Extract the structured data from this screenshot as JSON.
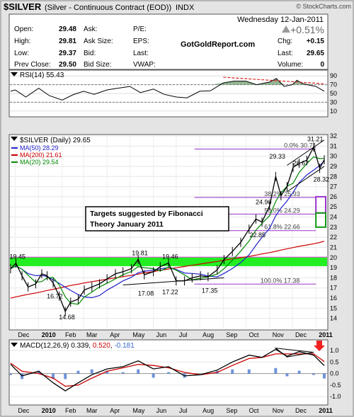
{
  "header": {
    "symbol_title": "$SILVER",
    "symbol_desc": "(Silver - Continuous Contract (EOD))",
    "exchange": "INDX",
    "brand": "© StockCharts.com",
    "date": "Wednesday 12-Jan-2011",
    "change_pct": "+0.51%",
    "watermark": "GotGoldReport.com",
    "quote": [
      {
        "label": "Open:",
        "value": "29.48"
      },
      {
        "label": "High:",
        "value": "29.81"
      },
      {
        "label": "Low:",
        "value": "29.37"
      },
      {
        "label": "Prev Close:",
        "value": "29.50"
      }
    ],
    "quote2": [
      {
        "label": "Ask:",
        "value": ""
      },
      {
        "label": "Ask Size:",
        "value": ""
      },
      {
        "label": "Bid:",
        "value": ""
      },
      {
        "label": "Bid Size:",
        "value": ""
      }
    ],
    "quote3": [
      {
        "label": "P/E:",
        "value": ""
      },
      {
        "label": "EPS:",
        "value": ""
      },
      {
        "label": "Last:",
        "value": ""
      },
      {
        "label": "VWAP:",
        "value": ""
      }
    ],
    "quote4": [
      {
        "label": "Chg:",
        "value": "+0.15"
      },
      {
        "label": "Last:",
        "value": "29.65"
      },
      {
        "label": "Volume:",
        "value": "0"
      }
    ]
  },
  "colors": {
    "background": "#e4e4e4",
    "panel": "#ffffff",
    "price": "#000000",
    "ma50": "#2222cc",
    "ma200": "#cc0000",
    "ma20": "#008800",
    "green_band": "#22ee22",
    "fib": "#9933cc",
    "rsi_fill": "#669966",
    "macd": "#000000",
    "signal": "#cc0000",
    "hist": "#3366cc",
    "trend_red": "#dd2222"
  },
  "chart_data": [
    {
      "type": "line",
      "name": "RSI",
      "label": "RSI(14)",
      "last_value": "55.43",
      "ylim": [
        0,
        100
      ],
      "y_ticks": [
        10,
        30,
        50,
        70,
        90
      ],
      "reference_lines": [
        30,
        70
      ],
      "dates": [
        "2009-11-25",
        "2009-12-01",
        "2009-12-15",
        "2010-01-01",
        "2010-01-15",
        "2010-02-01",
        "2010-02-15",
        "2010-03-01",
        "2010-03-15",
        "2010-04-01",
        "2010-04-15",
        "2010-05-01",
        "2010-05-15",
        "2010-06-01",
        "2010-06-15",
        "2010-07-01",
        "2010-07-15",
        "2010-08-01",
        "2010-08-15",
        "2010-09-01",
        "2010-09-15",
        "2010-10-01",
        "2010-10-15",
        "2010-11-01",
        "2010-11-10",
        "2010-11-20",
        "2010-12-01",
        "2010-12-07",
        "2010-12-15",
        "2011-01-01",
        "2011-01-12"
      ],
      "values": [
        55,
        58,
        42,
        62,
        45,
        35,
        47,
        55,
        48,
        58,
        62,
        66,
        52,
        60,
        48,
        42,
        40,
        55,
        56,
        74,
        78,
        78,
        70,
        76,
        84,
        66,
        70,
        80,
        72,
        66,
        55
      ]
    },
    {
      "type": "line",
      "name": "Price",
      "label": "$SILVER (Daily)",
      "last_value": "29.65",
      "ylim": [
        13,
        32
      ],
      "y_ticks": [
        14,
        15,
        16,
        17,
        18,
        19,
        20,
        21,
        22,
        23,
        24,
        25,
        26,
        27,
        28,
        29,
        30,
        31,
        32
      ],
      "x_ticks": [
        "Dec",
        "2010",
        "Feb",
        "Mar",
        "Apr",
        "May",
        "Jun",
        "Jul",
        "Aug",
        "Sep",
        "Oct",
        "Nov",
        "Dec",
        "2011"
      ],
      "dates": [
        "2009-11-25",
        "2009-12-02",
        "2009-12-10",
        "2009-12-18",
        "2009-12-28",
        "2010-01-05",
        "2010-01-12",
        "2010-01-20",
        "2010-01-28",
        "2010-02-05",
        "2010-02-12",
        "2010-02-22",
        "2010-03-02",
        "2010-03-12",
        "2010-03-22",
        "2010-04-01",
        "2010-04-12",
        "2010-04-22",
        "2010-05-03",
        "2010-05-12",
        "2010-05-20",
        "2010-06-01",
        "2010-06-10",
        "2010-06-21",
        "2010-07-01",
        "2010-07-12",
        "2010-07-22",
        "2010-08-02",
        "2010-08-12",
        "2010-08-24",
        "2010-09-02",
        "2010-09-13",
        "2010-09-24",
        "2010-10-05",
        "2010-10-14",
        "2010-10-22",
        "2010-11-01",
        "2010-11-09",
        "2010-11-16",
        "2010-11-24",
        "2010-12-02",
        "2010-12-10",
        "2010-12-20",
        "2010-12-29",
        "2011-01-06",
        "2011-01-12"
      ],
      "values": [
        18.9,
        19.45,
        18.2,
        17.1,
        17.4,
        18.4,
        18.2,
        17.5,
        16.2,
        14.68,
        15.6,
        15.9,
        16.8,
        17.1,
        17.4,
        17.9,
        18.4,
        18.6,
        18.9,
        19.81,
        18.3,
        18.6,
        19.1,
        19.46,
        17.7,
        17.7,
        18.0,
        18.2,
        18.1,
        18.8,
        19.8,
        20.6,
        21.5,
        22.8,
        23.8,
        23.5,
        25.1,
        28.0,
        26.1,
        27.0,
        28.9,
        29.3,
        29.6,
        30.9,
        28.8,
        29.65
      ],
      "price_labels": [
        "19.45",
        "16.72",
        "14.68",
        "19.81",
        "17.08",
        "17.22",
        "19.46",
        "17.35",
        "22.85",
        "24.90",
        "29.33",
        "28.67",
        "31.21",
        "28.32"
      ],
      "moving_averages": [
        {
          "name": "MA(50)",
          "value": "28.29"
        },
        {
          "name": "MA(200)",
          "value": "21.61"
        },
        {
          "name": "MA(20)",
          "value": "29.54"
        }
      ],
      "fibonacci": [
        {
          "label": "0.0%",
          "value": "30.71"
        },
        {
          "label": "38.2%",
          "value": "25.93"
        },
        {
          "label": "50.0%",
          "value": "24.29"
        },
        {
          "label": "61.8%",
          "value": "22.66"
        },
        {
          "label": "100.0%",
          "value": "17.38"
        }
      ],
      "annotation_lines": [
        "Targets suggested by Fibonacci",
        "Theory January 2011"
      ],
      "band_range": [
        19.15,
        20.05
      ],
      "target_ranges": [
        [
          24.4,
          26.0
        ],
        [
          23.0,
          24.4
        ]
      ]
    },
    {
      "type": "line",
      "name": "MACD",
      "label": "MACD(12,26,9)",
      "macd_value": "0.339",
      "signal_value": "0.520",
      "hist_value": "-0.181",
      "ylim": [
        -1.3,
        1.4
      ],
      "y_ticks": [
        -1.0,
        -0.5,
        0.0,
        0.5,
        1.0
      ],
      "dates": [
        "2009-11-25",
        "2009-12-10",
        "2010-01-01",
        "2010-01-20",
        "2010-02-05",
        "2010-02-22",
        "2010-03-12",
        "2010-04-01",
        "2010-04-22",
        "2010-05-12",
        "2010-06-01",
        "2010-06-21",
        "2010-07-12",
        "2010-08-02",
        "2010-08-24",
        "2010-09-13",
        "2010-10-05",
        "2010-10-22",
        "2010-11-09",
        "2010-11-24",
        "2010-12-10",
        "2010-12-29",
        "2011-01-12"
      ],
      "macd": [
        0.4,
        -0.1,
        0.1,
        -0.4,
        -0.75,
        -0.4,
        -0.05,
        0.2,
        0.3,
        0.55,
        0.2,
        0.3,
        -0.1,
        -0.05,
        0.15,
        0.5,
        0.8,
        0.7,
        1.05,
        0.75,
        0.95,
        0.8,
        0.34
      ],
      "signal": [
        0.45,
        0.1,
        0.0,
        -0.2,
        -0.55,
        -0.5,
        -0.2,
        0.1,
        0.25,
        0.4,
        0.35,
        0.25,
        0.05,
        -0.05,
        0.05,
        0.35,
        0.65,
        0.7,
        0.85,
        0.85,
        0.85,
        0.85,
        0.52
      ]
    }
  ]
}
